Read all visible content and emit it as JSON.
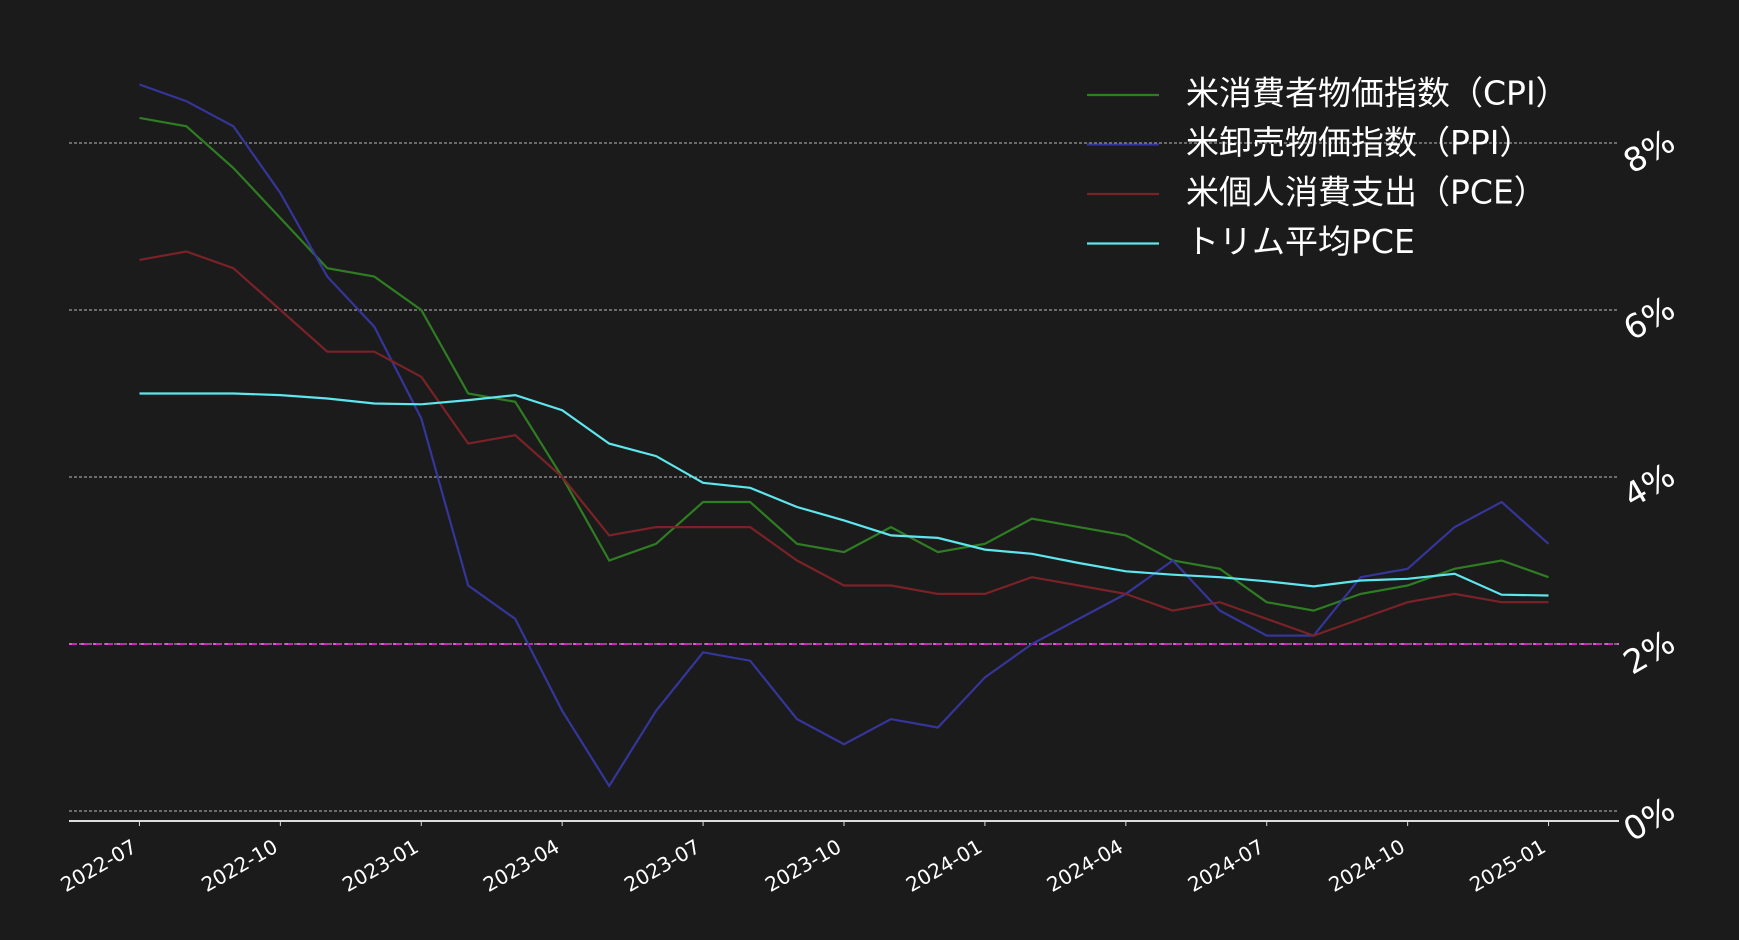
{
  "chart_data": {
    "type": "line",
    "x": [
      "2022-07",
      "2022-08",
      "2022-09",
      "2022-10",
      "2022-11",
      "2022-12",
      "2023-01",
      "2023-02",
      "2023-03",
      "2023-04",
      "2023-05",
      "2023-06",
      "2023-07",
      "2023-08",
      "2023-09",
      "2023-10",
      "2023-11",
      "2023-12",
      "2024-01",
      "2024-02",
      "2024-03",
      "2024-04",
      "2024-05",
      "2024-06",
      "2024-07",
      "2024-08",
      "2024-09",
      "2024-10",
      "2024-11",
      "2024-12",
      "2025-01"
    ],
    "xticks": [
      "2022-07",
      "2022-10",
      "2023-01",
      "2023-04",
      "2023-07",
      "2023-10",
      "2024-01",
      "2024-04",
      "2024-07",
      "2024-10",
      "2025-01"
    ],
    "series": [
      {
        "name": "米消費者物価指数（CPI）",
        "color": "#2e7d22",
        "values": [
          8.3,
          8.2,
          7.7,
          7.1,
          6.5,
          6.4,
          6.0,
          5.0,
          4.9,
          4.0,
          3.0,
          3.2,
          3.7,
          3.7,
          3.2,
          3.1,
          3.4,
          3.1,
          3.2,
          3.5,
          3.4,
          3.3,
          3.0,
          2.9,
          2.5,
          2.4,
          2.6,
          2.7,
          2.9,
          3.0,
          2.8
        ]
      },
      {
        "name": "米卸売物価指数（PPI）",
        "color": "#35359a",
        "values": [
          8.7,
          8.5,
          8.2,
          7.4,
          6.4,
          5.8,
          4.7,
          2.7,
          2.3,
          1.2,
          0.3,
          1.2,
          1.9,
          1.8,
          1.1,
          0.8,
          1.1,
          1.0,
          1.6,
          2.0,
          2.3,
          2.6,
          3.0,
          2.4,
          2.1,
          2.1,
          2.8,
          2.9,
          3.4,
          3.7,
          3.2
        ]
      },
      {
        "name": "米個人消費支出（PCE）",
        "color": "#7a2228",
        "values": [
          6.6,
          6.7,
          6.5,
          6.0,
          5.5,
          5.5,
          5.2,
          4.4,
          4.5,
          4.0,
          3.3,
          3.4,
          3.4,
          3.4,
          3.0,
          2.7,
          2.7,
          2.6,
          2.6,
          2.8,
          2.7,
          2.6,
          2.4,
          2.5,
          2.3,
          2.1,
          2.3,
          2.5,
          2.6,
          2.5,
          2.5
        ]
      },
      {
        "name": "トリム平均PCE",
        "color": "#5ee6ee",
        "values": [
          5.0,
          5.0,
          5.0,
          4.98,
          4.94,
          4.88,
          4.87,
          4.92,
          4.98,
          4.8,
          4.4,
          4.25,
          3.93,
          3.87,
          3.64,
          3.48,
          3.3,
          3.27,
          3.13,
          3.08,
          2.97,
          2.87,
          2.83,
          2.8,
          2.75,
          2.69,
          2.76,
          2.78,
          2.84,
          2.59,
          2.58
        ]
      }
    ],
    "ylim": [
      -0.12,
      9.7
    ],
    "yticks": [
      {
        "value": 0,
        "label": "0%"
      },
      {
        "value": 2,
        "label": "2%"
      },
      {
        "value": 4,
        "label": "4%"
      },
      {
        "value": 6,
        "label": "6%"
      },
      {
        "value": 8,
        "label": "8%"
      }
    ],
    "hline": {
      "value": 2,
      "color": "#d020c0"
    },
    "grid": true,
    "legend": "upper-right"
  }
}
